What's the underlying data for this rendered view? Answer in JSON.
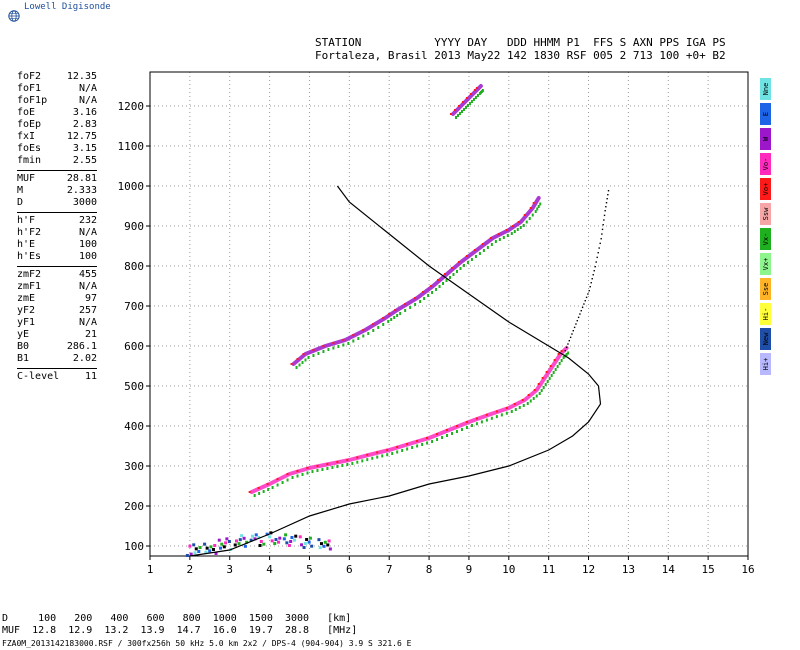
{
  "brand": {
    "name": "Lowell Digisonde"
  },
  "header": {
    "line1": "STATION           YYYY DAY   DDD HHMM P1  FFS S AXN PPS IGA PS",
    "line2": "Fortaleza, Brasil 2013 May22 142 1830 RSF 005 2 713 100 +0+ B2"
  },
  "params": [
    {
      "label": "foF2",
      "value": "12.35"
    },
    {
      "label": "foF1",
      "value": "N/A"
    },
    {
      "label": "foF1p",
      "value": "N/A"
    },
    {
      "label": "foE",
      "value": "3.16"
    },
    {
      "label": "foEp",
      "value": "2.83"
    },
    {
      "label": "fxI",
      "value": "12.75"
    },
    {
      "label": "foEs",
      "value": "3.15"
    },
    {
      "label": "fmin",
      "value": "2.55"
    },
    {
      "divider": true
    },
    {
      "label": "MUF",
      "value": "28.81"
    },
    {
      "label": "M",
      "value": "2.333"
    },
    {
      "label": "D",
      "value": "3000"
    },
    {
      "divider": true
    },
    {
      "label": "h'F",
      "value": "232"
    },
    {
      "label": "h'F2",
      "value": "N/A"
    },
    {
      "label": "h'E",
      "value": "100"
    },
    {
      "label": "h'Es",
      "value": "100"
    },
    {
      "divider": true
    },
    {
      "label": "zmF2",
      "value": "455"
    },
    {
      "label": "zmF1",
      "value": "N/A"
    },
    {
      "label": "zmE",
      "value": "97"
    },
    {
      "label": "yF2",
      "value": "257"
    },
    {
      "label": "yF1",
      "value": "N/A"
    },
    {
      "label": "yE",
      "value": "21"
    },
    {
      "label": "B0",
      "value": "286.1"
    },
    {
      "label": "B1",
      "value": "2.02"
    },
    {
      "divider": true
    },
    {
      "label": "C-level",
      "value": "11"
    }
  ],
  "legend": [
    {
      "label": "Nne",
      "color": "#6fe3e3"
    },
    {
      "label": "E",
      "color": "#1e64e6"
    },
    {
      "label": "W",
      "color": "#9b17c9"
    },
    {
      "label": "Vo-",
      "color": "#ff2bbf"
    },
    {
      "label": "Vo+",
      "color": "#ff1a1a"
    },
    {
      "label": "Ssw",
      "color": "#f6a6a6"
    },
    {
      "label": "Vx-",
      "color": "#1fb01f"
    },
    {
      "label": "Vx+",
      "color": "#8ef58e"
    },
    {
      "label": "Sse",
      "color": "#ffb428"
    },
    {
      "label": "Hi-",
      "color": "#ffff3a"
    },
    {
      "label": "New",
      "color": "#1e4ea8"
    },
    {
      "label": "Hi+",
      "color": "#b8b8ff"
    }
  ],
  "bottom_table": {
    "d_row": "D     100   200   400   600   800  1000  1500  3000   [km]",
    "muf_row": "MUF  12.8  12.9  13.2  13.9  14.7  16.0  19.7  28.8   [MHz]"
  },
  "footer": "FZA0M_2013142183000.RSF / 300fx256h 50 kHz 5.0 km 2x2 / DPS-4 (904-904)  3.9 S 321.6 E",
  "chart_data": {
    "type": "scatter",
    "xlabel": "",
    "ylabel": "",
    "xlim": [
      1,
      16
    ],
    "ylim": [
      75,
      1285
    ],
    "x_ticks": [
      1,
      2,
      3,
      4,
      5,
      6,
      7,
      8,
      9,
      10,
      11,
      12,
      13,
      14,
      15,
      16
    ],
    "y_ticks": [
      100,
      200,
      300,
      400,
      500,
      600,
      700,
      800,
      900,
      1000,
      1100,
      1200
    ],
    "grid": true,
    "series": [
      {
        "kind": "trace",
        "color": "#ff2bbf",
        "points": [
          [
            3.55,
            235
          ],
          [
            4.0,
            255
          ],
          [
            4.5,
            280
          ],
          [
            5.0,
            295
          ],
          [
            5.5,
            305
          ],
          [
            6.0,
            315
          ],
          [
            6.5,
            328
          ],
          [
            7.0,
            340
          ],
          [
            7.5,
            355
          ],
          [
            8.0,
            370
          ],
          [
            8.5,
            390
          ],
          [
            9.0,
            410
          ],
          [
            9.5,
            428
          ],
          [
            10.0,
            445
          ],
          [
            10.4,
            465
          ],
          [
            10.7,
            490
          ],
          [
            10.9,
            520
          ],
          [
            11.1,
            550
          ],
          [
            11.3,
            580
          ],
          [
            11.45,
            595
          ]
        ]
      },
      {
        "kind": "trace",
        "color": "#9b17c9",
        "points": [
          [
            4.6,
            555
          ],
          [
            4.9,
            580
          ],
          [
            5.4,
            600
          ],
          [
            5.9,
            615
          ],
          [
            6.4,
            640
          ],
          [
            6.9,
            670
          ],
          [
            7.2,
            690
          ],
          [
            7.7,
            720
          ],
          [
            8.1,
            750
          ],
          [
            8.45,
            780
          ],
          [
            8.8,
            810
          ],
          [
            9.2,
            840
          ],
          [
            9.6,
            870
          ],
          [
            10.0,
            890
          ],
          [
            10.3,
            910
          ],
          [
            10.6,
            945
          ],
          [
            10.75,
            970
          ]
        ]
      },
      {
        "kind": "trace",
        "color": "#9b17c9",
        "points": [
          [
            8.6,
            1180
          ],
          [
            8.8,
            1200
          ],
          [
            9.0,
            1220
          ],
          [
            9.2,
            1240
          ],
          [
            9.3,
            1250
          ]
        ]
      },
      {
        "kind": "ground",
        "color": "#1e4ea8",
        "points": [
          [
            1.9,
            95
          ],
          [
            2.3,
            100
          ],
          [
            2.7,
            110
          ],
          [
            3.1,
            118
          ],
          [
            3.5,
            120
          ],
          [
            3.9,
            125
          ],
          [
            4.3,
            120
          ],
          [
            4.7,
            115
          ],
          [
            5.2,
            108
          ]
        ]
      },
      {
        "kind": "profile",
        "color": "#000000",
        "points": [
          [
            2.0,
            75
          ],
          [
            3.0,
            90
          ],
          [
            4.0,
            130
          ],
          [
            5.0,
            175
          ],
          [
            6.0,
            205
          ],
          [
            7.0,
            225
          ],
          [
            8.0,
            255
          ],
          [
            9.0,
            275
          ],
          [
            10.0,
            300
          ],
          [
            11.0,
            340
          ],
          [
            11.6,
            375
          ],
          [
            12.0,
            410
          ],
          [
            12.3,
            455
          ],
          [
            12.25,
            500
          ],
          [
            12.0,
            530
          ],
          [
            11.5,
            570
          ],
          [
            11.0,
            600
          ],
          [
            10.0,
            660
          ],
          [
            9.0,
            730
          ],
          [
            8.0,
            800
          ],
          [
            7.0,
            880
          ],
          [
            6.0,
            960
          ],
          [
            5.7,
            1000
          ]
        ]
      },
      {
        "kind": "dotted",
        "color": "#000000",
        "points": [
          [
            11.4,
            590
          ],
          [
            11.6,
            640
          ],
          [
            11.8,
            690
          ],
          [
            12.0,
            740
          ],
          [
            12.15,
            800
          ],
          [
            12.3,
            870
          ],
          [
            12.4,
            940
          ],
          [
            12.5,
            1000
          ]
        ]
      }
    ]
  }
}
